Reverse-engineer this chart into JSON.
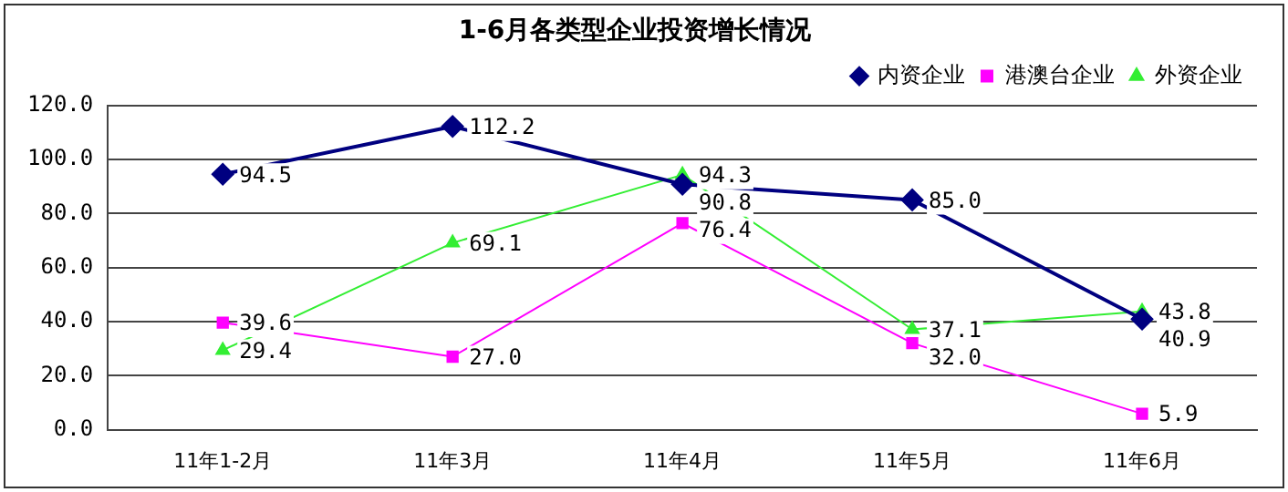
{
  "chart_data": {
    "type": "line",
    "title": "1-6月各类型企业投资增长情况",
    "categories": [
      "11年1-2月",
      "11年3月",
      "11年4月",
      "11年5月",
      "11年6月"
    ],
    "series": [
      {
        "name": "内资企业",
        "color": "#000080",
        "marker": "diamond",
        "values": [
          94.5,
          112.2,
          90.8,
          85.0,
          40.9
        ],
        "value_labels": [
          "94.5",
          "112.2",
          "90.8",
          "85.0",
          "40.9"
        ]
      },
      {
        "name": "港澳台企业",
        "color": "#ff00ff",
        "marker": "square",
        "values": [
          39.6,
          27.0,
          76.4,
          32.0,
          5.9
        ],
        "value_labels": [
          "39.6",
          "27.0",
          "76.4",
          "32.0",
          "5.9"
        ]
      },
      {
        "name": "外资企业",
        "color": "#33ee33",
        "marker": "triangle",
        "values": [
          29.4,
          69.1,
          94.3,
          37.1,
          43.8
        ],
        "value_labels": [
          "29.4",
          "69.1",
          "94.3",
          "37.1",
          "43.8"
        ]
      }
    ],
    "ylim": [
      0,
      120
    ],
    "yticks": [
      {
        "value": 0,
        "label": "0.0"
      },
      {
        "value": 20,
        "label": "20.0"
      },
      {
        "value": 40,
        "label": "40.0"
      },
      {
        "value": 60,
        "label": "60.0"
      },
      {
        "value": 80,
        "label": "80.0"
      },
      {
        "value": 100,
        "label": "100.0"
      },
      {
        "value": 120,
        "label": "120.0"
      }
    ],
    "grid": "y",
    "legend": "top right"
  }
}
